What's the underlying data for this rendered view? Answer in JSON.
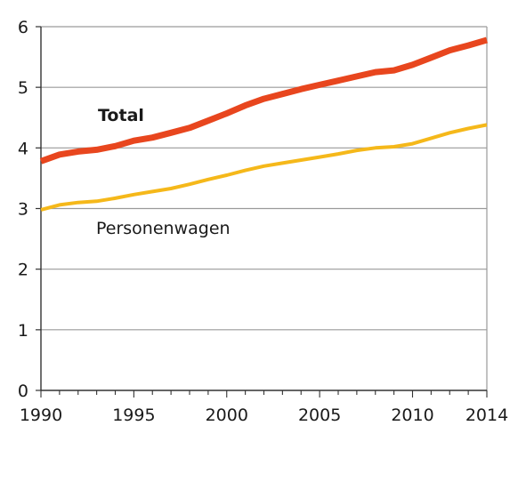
{
  "chart_data": {
    "type": "line",
    "title": "",
    "xlabel": "",
    "ylabel": "",
    "xlim": [
      1990,
      2014
    ],
    "ylim": [
      0,
      6
    ],
    "grid": "horizontal",
    "legend": "inline labels",
    "x_ticks": [
      1990,
      1995,
      2000,
      2005,
      2010,
      2014
    ],
    "y_ticks": [
      0,
      1,
      2,
      3,
      4,
      5,
      6
    ],
    "x_tick_labels": [
      "1990",
      "1995",
      "2000",
      "2005",
      "2010",
      "2014"
    ],
    "y_tick_labels": [
      "0",
      "1",
      "2",
      "3",
      "4",
      "5",
      "6"
    ],
    "x": [
      1990,
      1991,
      1992,
      1993,
      1994,
      1995,
      1996,
      1997,
      1998,
      1999,
      2000,
      2001,
      2002,
      2003,
      2004,
      2005,
      2006,
      2007,
      2008,
      2009,
      2010,
      2011,
      2012,
      2013,
      2014
    ],
    "series": [
      {
        "name": "Total",
        "color": "#e8461e",
        "values": [
          3.78,
          3.89,
          3.94,
          3.97,
          4.03,
          4.12,
          4.17,
          4.25,
          4.33,
          4.45,
          4.57,
          4.7,
          4.81,
          4.89,
          4.97,
          5.04,
          5.11,
          5.18,
          5.25,
          5.28,
          5.37,
          5.49,
          5.61,
          5.69,
          5.78
        ]
      },
      {
        "name": "Personenwagen",
        "color": "#f5b81a",
        "values": [
          2.98,
          3.06,
          3.1,
          3.12,
          3.17,
          3.23,
          3.28,
          3.33,
          3.4,
          3.48,
          3.55,
          3.63,
          3.7,
          3.75,
          3.8,
          3.85,
          3.9,
          3.96,
          4.0,
          4.02,
          4.07,
          4.16,
          4.25,
          4.32,
          4.38
        ]
      }
    ],
    "labels": {
      "total": "Total",
      "personenwagen": "Personenwagen"
    }
  }
}
